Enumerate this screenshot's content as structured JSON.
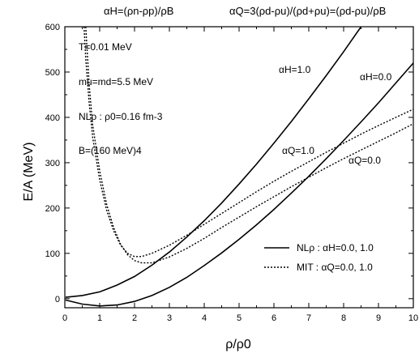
{
  "header": {
    "left_formula": "αH=(ρn-ρp)/ρB",
    "right_formula": "αQ=3(ρd-ρu)/(ρd+ρu)=(ρd-ρu)/ρB"
  },
  "annotations": {
    "temperature": "T=0.01 MeV",
    "quark_masses": "mu=md=5.5 MeV",
    "saturation_density": "NLρ : ρ0=0.16 fm-3",
    "bag_constant": "B=(160 MeV)4"
  },
  "curve_labels": {
    "h10": "αH=1.0",
    "h00": "αH=0.0",
    "q10": "αQ=1.0",
    "q00": "αQ=0.0"
  },
  "legend": {
    "solid": "NLρ  : αH=0.0, 1.0",
    "dotted": "MIT  : αQ=0.0, 1.0"
  },
  "colors": {
    "line": "#000000",
    "background": "#ffffff"
  },
  "chart_data": {
    "type": "line",
    "title": "",
    "xlabel": "ρ/ρ0",
    "ylabel": "E/A (MeV)",
    "xlim": [
      0,
      10
    ],
    "ylim": [
      -20,
      600
    ],
    "xticks": [
      0,
      1,
      2,
      3,
      4,
      5,
      6,
      7,
      8,
      9,
      10
    ],
    "yticks": [
      0,
      100,
      200,
      300,
      400,
      500,
      600
    ],
    "grid": false,
    "legend_position": "bottom-right",
    "series": [
      {
        "name": "αH=1.0",
        "style": "solid",
        "points": [
          [
            0.02,
            3
          ],
          [
            0.5,
            7
          ],
          [
            1,
            15
          ],
          [
            1.5,
            30
          ],
          [
            2,
            49
          ],
          [
            2.5,
            74
          ],
          [
            3,
            103
          ],
          [
            3.5,
            136
          ],
          [
            4,
            172
          ],
          [
            4.5,
            211
          ],
          [
            5,
            253
          ],
          [
            5.5,
            297
          ],
          [
            6,
            343
          ],
          [
            6.5,
            391
          ],
          [
            7,
            441
          ],
          [
            7.5,
            492
          ],
          [
            8,
            545
          ],
          [
            8.5,
            600
          ]
        ]
      },
      {
        "name": "αH=0.0",
        "style": "solid",
        "points": [
          [
            0.02,
            -3
          ],
          [
            0.5,
            -12
          ],
          [
            1,
            -16
          ],
          [
            1.5,
            -14
          ],
          [
            2,
            -6
          ],
          [
            2.5,
            7
          ],
          [
            3,
            25
          ],
          [
            3.5,
            47
          ],
          [
            4,
            73
          ],
          [
            4.5,
            101
          ],
          [
            5,
            131
          ],
          [
            5.5,
            163
          ],
          [
            6,
            197
          ],
          [
            6.5,
            233
          ],
          [
            7,
            270
          ],
          [
            7.5,
            309
          ],
          [
            8,
            349
          ],
          [
            8.5,
            390
          ],
          [
            9,
            432
          ],
          [
            9.5,
            476
          ],
          [
            10,
            520
          ]
        ]
      },
      {
        "name": "αQ=1.0",
        "style": "dotted",
        "points": [
          [
            0.55,
            600
          ],
          [
            0.6,
            530
          ],
          [
            0.7,
            430
          ],
          [
            0.8,
            355
          ],
          [
            1,
            262
          ],
          [
            1.2,
            195
          ],
          [
            1.4,
            150
          ],
          [
            1.6,
            118
          ],
          [
            1.8,
            100
          ],
          [
            2,
            93
          ],
          [
            2.2,
            93
          ],
          [
            2.5,
            100
          ],
          [
            3,
            118
          ],
          [
            3.5,
            140
          ],
          [
            4,
            164
          ],
          [
            4.5,
            188
          ],
          [
            5,
            212
          ],
          [
            5.5,
            236
          ],
          [
            6,
            259
          ],
          [
            6.5,
            281
          ],
          [
            7,
            302
          ],
          [
            7.5,
            323
          ],
          [
            8,
            343
          ],
          [
            8.5,
            363
          ],
          [
            9,
            382
          ],
          [
            9.5,
            400
          ],
          [
            10,
            418
          ]
        ]
      },
      {
        "name": "αQ=0.0",
        "style": "dotted",
        "points": [
          [
            0.6,
            600
          ],
          [
            0.7,
            470
          ],
          [
            0.8,
            383
          ],
          [
            1,
            282
          ],
          [
            1.2,
            208
          ],
          [
            1.4,
            157
          ],
          [
            1.6,
            120
          ],
          [
            1.8,
            97
          ],
          [
            2,
            84
          ],
          [
            2.2,
            79
          ],
          [
            2.5,
            79
          ],
          [
            3,
            92
          ],
          [
            3.5,
            111
          ],
          [
            4,
            133
          ],
          [
            4.5,
            157
          ],
          [
            5,
            180
          ],
          [
            5.5,
            203
          ],
          [
            6,
            225
          ],
          [
            6.5,
            247
          ],
          [
            7,
            268
          ],
          [
            7.5,
            289
          ],
          [
            8,
            309
          ],
          [
            8.5,
            328
          ],
          [
            9,
            347
          ],
          [
            9.5,
            366
          ],
          [
            10,
            386
          ]
        ]
      }
    ]
  }
}
